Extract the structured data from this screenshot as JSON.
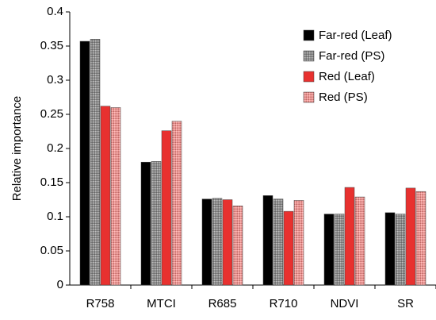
{
  "chart_data": {
    "type": "bar",
    "y_label": "Relative importance",
    "categories": [
      "R758",
      "MTCI",
      "R685",
      "R710",
      "NDVI",
      "SR"
    ],
    "series": [
      {
        "name": "Far-red (Leaf)",
        "color": "#000000",
        "hatch": false,
        "values": [
          0.357,
          0.18,
          0.126,
          0.131,
          0.104,
          0.106
        ]
      },
      {
        "name": "Far-red (PS)",
        "color": "#8a8a8a",
        "hatch": true,
        "values": [
          0.36,
          0.181,
          0.127,
          0.126,
          0.104,
          0.104
        ]
      },
      {
        "name": "Red (Leaf)",
        "color": "#e8312f",
        "hatch": false,
        "values": [
          0.262,
          0.226,
          0.125,
          0.108,
          0.143,
          0.142
        ]
      },
      {
        "name": "Red (PS)",
        "color": "#f3928f",
        "hatch": true,
        "values": [
          0.26,
          0.24,
          0.116,
          0.124,
          0.129,
          0.137
        ]
      }
    ],
    "ylim": [
      0,
      0.4
    ],
    "yticks": [
      0,
      0.05,
      0.1,
      0.15,
      0.2,
      0.25,
      0.3,
      0.35,
      0.4
    ],
    "grid": false,
    "legend": "upper right"
  }
}
